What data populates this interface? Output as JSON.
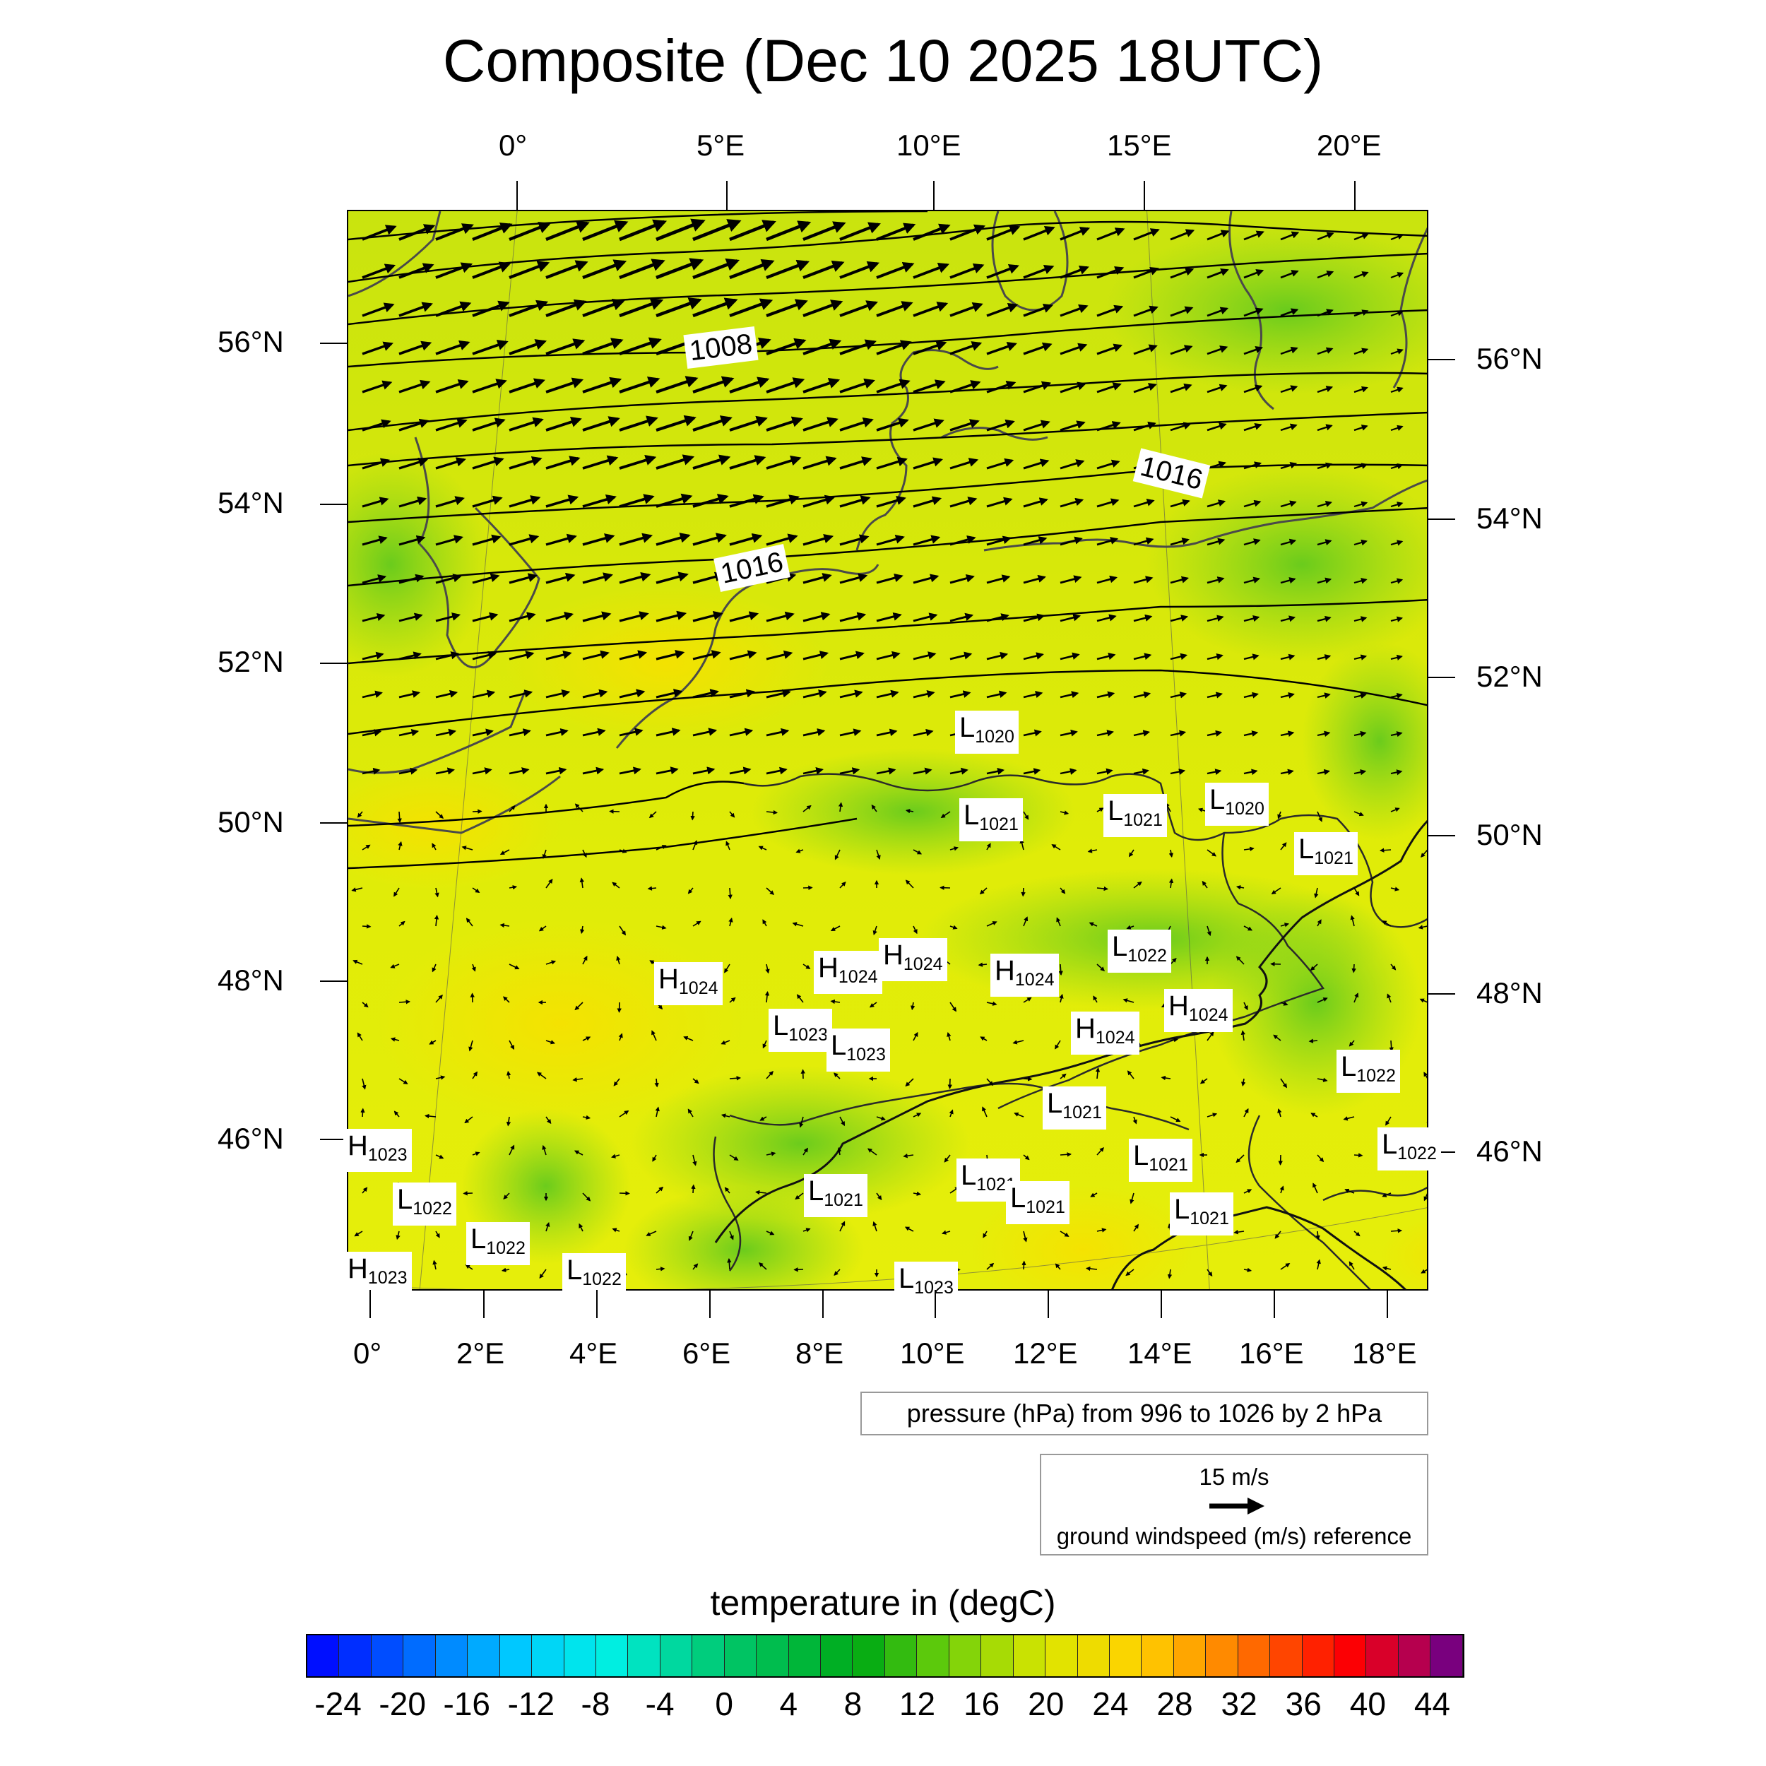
{
  "title": "Composite (Dec 10 2025 18UTC)",
  "top_axis_labels": [
    "0°",
    "5°E",
    "10°E",
    "15°E",
    "20°E"
  ],
  "bottom_axis_labels": [
    "0°",
    "2°E",
    "4°E",
    "6°E",
    "8°E",
    "10°E",
    "12°E",
    "14°E",
    "16°E",
    "18°E"
  ],
  "left_axis_labels": [
    "56°N",
    "54°N",
    "52°N",
    "50°N",
    "48°N",
    "46°N"
  ],
  "right_axis_labels": [
    "56°N",
    "54°N",
    "52°N",
    "50°N",
    "48°N",
    "46°N"
  ],
  "pressure_legend": "pressure (hPa) from 996 to 1026 by 2 hPa",
  "wind_legend": {
    "speed": "15 m/s",
    "caption": "ground windspeed (m/s) reference"
  },
  "colorbar": {
    "title": "temperature in (degC)",
    "labels": [
      "-24",
      "-20",
      "-16",
      "-12",
      "-8",
      "-4",
      "0",
      "4",
      "8",
      "12",
      "16",
      "20",
      "24",
      "28",
      "32",
      "36",
      "40",
      "44"
    ],
    "range": [
      -26,
      46
    ],
    "step": 2
  },
  "contour_labels": [
    {
      "text": "1008"
    },
    {
      "text": "1016"
    },
    {
      "text": "1016"
    }
  ],
  "pressure_centers": [
    {
      "type": "L",
      "value": "1020"
    },
    {
      "type": "L",
      "value": "1021"
    },
    {
      "type": "L",
      "value": "1021"
    },
    {
      "type": "L",
      "value": "1020"
    },
    {
      "type": "L",
      "value": "1021"
    },
    {
      "type": "L",
      "value": "1022"
    },
    {
      "type": "H",
      "value": "1024"
    },
    {
      "type": "H",
      "value": "1024"
    },
    {
      "type": "H",
      "value": "1024"
    },
    {
      "type": "H",
      "value": "1024"
    },
    {
      "type": "H",
      "value": "1024"
    },
    {
      "type": "H",
      "value": "1024"
    },
    {
      "type": "L",
      "value": "1023"
    },
    {
      "type": "L",
      "value": "1023"
    },
    {
      "type": "L",
      "value": "1022"
    },
    {
      "type": "L",
      "value": "1021"
    },
    {
      "type": "H",
      "value": "1023"
    },
    {
      "type": "L",
      "value": "1022"
    },
    {
      "type": "L",
      "value": "1022"
    },
    {
      "type": "L",
      "value": "1021"
    },
    {
      "type": "L",
      "value": "1021"
    },
    {
      "type": "L",
      "value": "1021"
    },
    {
      "type": "L",
      "value": "1021"
    },
    {
      "type": "L",
      "value": "1021"
    },
    {
      "type": "L",
      "value": "1022"
    },
    {
      "type": "H",
      "value": "1023"
    },
    {
      "type": "L",
      "value": "1022"
    },
    {
      "type": "L",
      "value": "1023"
    }
  ]
}
